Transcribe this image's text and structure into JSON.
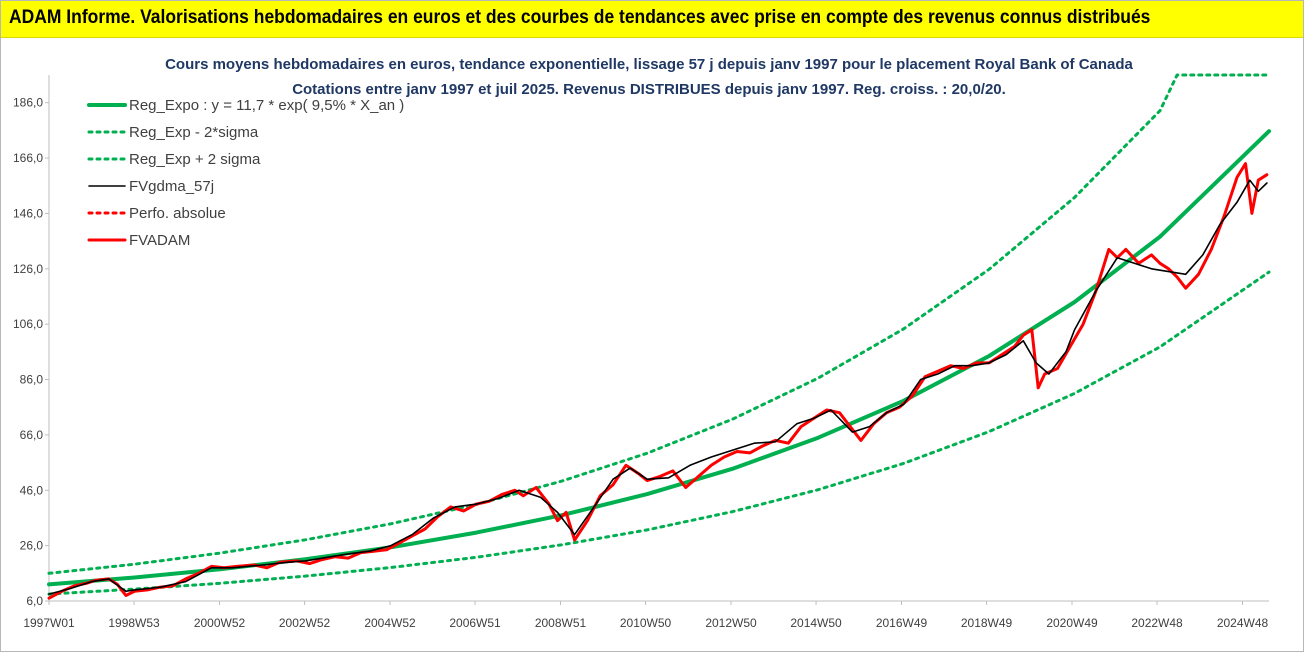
{
  "banner": {
    "title": "ADAM Informe. Valorisations hebdomadaires en euros et des courbes de tendances avec prise en compte des revenus connus distribués",
    "background": "#ffff00"
  },
  "chart_data": {
    "type": "line",
    "title": "Cours moyens hebdomadaires en euros, tendance exponentielle, lissage 57 j depuis janv 1997  pour le placement Royal Bank of Canada",
    "subtitle": "Cotations entre janv 1997 et juil 2025. Revenus DISTRIBUES depuis janv 1997. Reg. croiss. : 20,0/20.",
    "xlabel": "",
    "ylabel": "",
    "xlim": [
      1997.0,
      2025.55
    ],
    "ylim": [
      6,
      196
    ],
    "grid": false,
    "legend_position": "top-left",
    "x_ticks": [
      1997.0,
      1998.99,
      2000.99,
      2002.98,
      2004.98,
      2006.97,
      2008.97,
      2010.96,
      2012.96,
      2014.95,
      2016.95,
      2018.94,
      2020.94,
      2022.93,
      2024.93
    ],
    "x_tick_labels": [
      "1997W01",
      "1998W53",
      "2000W52",
      "2002W52",
      "2004W52",
      "2006W51",
      "2008W51",
      "2010W50",
      "2012W50",
      "2014W50",
      "2016W49",
      "2018W49",
      "2020W49",
      "2022W48",
      "2024W48"
    ],
    "y_ticks": [
      6,
      26,
      46,
      66,
      86,
      106,
      126,
      146,
      166,
      186
    ],
    "y_tick_labels": [
      "6,0",
      "26,0",
      "46,0",
      "66,0",
      "86,0",
      "106,0",
      "126,0",
      "146,0",
      "166,0",
      "186,0"
    ],
    "series": [
      {
        "name": "Reg_Expo : y = 11,7 * exp( 9,5% *  X_an )",
        "color": "#00b050",
        "style": "solid-thick",
        "x": [
          1997.0,
          1999.0,
          2001.0,
          2003.0,
          2005.0,
          2007.0,
          2009.0,
          2011.0,
          2013.0,
          2015.0,
          2017.0,
          2019.0,
          2021.0,
          2023.0,
          2025.55
        ],
        "values": [
          12.0,
          14.5,
          17.5,
          21.1,
          25.4,
          30.7,
          37.0,
          44.6,
          53.8,
          65.0,
          78.3,
          94.5,
          114.0,
          137.6,
          175.7
        ]
      },
      {
        "name": "Reg_Exp - 2*sigma",
        "color": "#00b050",
        "style": "dotted",
        "x": [
          1997.0,
          1999.0,
          2001.0,
          2003.0,
          2005.0,
          2007.0,
          2009.0,
          2011.0,
          2013.0,
          2015.0,
          2017.0,
          2019.0,
          2021.0,
          2023.0,
          2025.55
        ],
        "values": [
          8.5,
          10.3,
          12.4,
          15.0,
          18.1,
          21.8,
          26.3,
          31.7,
          38.3,
          46.2,
          55.7,
          67.2,
          81.0,
          97.8,
          124.8
        ]
      },
      {
        "name": "Reg_Exp + 2 sigma",
        "color": "#00b050",
        "style": "dotted",
        "x": [
          1997.0,
          1999.0,
          2001.0,
          2003.0,
          2005.0,
          2007.0,
          2009.0,
          2011.0,
          2013.0,
          2015.0,
          2017.0,
          2019.0,
          2021.0,
          2023.0,
          2023.4,
          2025.55
        ],
        "values": [
          16.0,
          19.3,
          23.3,
          28.1,
          33.9,
          40.9,
          49.3,
          59.4,
          71.7,
          86.5,
          104.3,
          125.8,
          151.8,
          183.1,
          196.0,
          196.0
        ]
      },
      {
        "name": "FVgdma_57j",
        "color": "#000000",
        "style": "solid",
        "x": [
          1997.0,
          1997.5,
          1998.0,
          1998.4,
          1998.8,
          1999.0,
          1999.6,
          2000.2,
          2000.8,
          2001.3,
          2002.0,
          2002.6,
          2003.0,
          2003.6,
          2004.0,
          2004.5,
          2005.0,
          2005.5,
          2006.0,
          2006.5,
          2007.0,
          2007.5,
          2008.0,
          2008.5,
          2008.9,
          2009.3,
          2009.8,
          2010.2,
          2010.6,
          2011.0,
          2011.5,
          2012.0,
          2012.5,
          2013.0,
          2013.5,
          2014.0,
          2014.5,
          2014.9,
          2015.3,
          2015.8,
          2016.2,
          2016.6,
          2017.0,
          2017.4,
          2017.8,
          2018.2,
          2018.6,
          2019.0,
          2019.4,
          2019.8,
          2020.1,
          2020.4,
          2020.8,
          2021.0,
          2021.5,
          2022.0,
          2022.4,
          2022.8,
          2023.2,
          2023.6,
          2024.0,
          2024.4,
          2024.8,
          2025.1,
          2025.3,
          2025.5
        ],
        "values": [
          8.5,
          10.5,
          13.0,
          14.0,
          9.5,
          10.0,
          11.0,
          13.0,
          18.0,
          18.0,
          19.0,
          20.0,
          20.5,
          22.0,
          23.0,
          24.0,
          26.0,
          30.0,
          36.0,
          40.0,
          41.0,
          43.0,
          46.0,
          43.5,
          38.0,
          30.0,
          41.0,
          50.0,
          54.0,
          50.0,
          50.5,
          55.0,
          58.0,
          60.5,
          63.0,
          63.5,
          70.0,
          72.0,
          75.0,
          67.0,
          69.0,
          74.0,
          77.0,
          86.0,
          88.0,
          91.0,
          91.0,
          92.0,
          95.0,
          100.0,
          92.0,
          88.0,
          96.0,
          104.0,
          118.0,
          130.0,
          128.0,
          126.0,
          125.0,
          124.0,
          131.0,
          142.0,
          150.0,
          158.0,
          154.0,
          157.0
        ]
      },
      {
        "name": "Perfo. absolue",
        "color": "#ff0000",
        "style": "dotted",
        "x": [],
        "values": []
      },
      {
        "name": "FVADAM",
        "color": "#ff0000",
        "style": "solid-thick",
        "x": [
          1997.0,
          1997.3,
          1997.6,
          1997.9,
          1998.1,
          1998.4,
          1998.6,
          1998.8,
          1999.0,
          1999.3,
          1999.6,
          1999.9,
          2000.2,
          2000.5,
          2000.8,
          2001.1,
          2001.4,
          2001.8,
          2002.1,
          2002.4,
          2002.8,
          2003.1,
          2003.4,
          2003.7,
          2004.0,
          2004.3,
          2004.6,
          2004.9,
          2005.2,
          2005.5,
          2005.8,
          2006.1,
          2006.4,
          2006.7,
          2007.0,
          2007.3,
          2007.6,
          2007.9,
          2008.1,
          2008.4,
          2008.7,
          2008.9,
          2009.1,
          2009.3,
          2009.6,
          2009.9,
          2010.2,
          2010.5,
          2010.8,
          2011.0,
          2011.3,
          2011.6,
          2011.9,
          2012.2,
          2012.5,
          2012.8,
          2013.1,
          2013.4,
          2013.7,
          2014.0,
          2014.3,
          2014.6,
          2014.9,
          2015.2,
          2015.5,
          2015.8,
          2016.0,
          2016.3,
          2016.6,
          2016.9,
          2017.2,
          2017.5,
          2017.8,
          2018.1,
          2018.4,
          2018.7,
          2019.0,
          2019.3,
          2019.6,
          2019.8,
          2020.0,
          2020.15,
          2020.3,
          2020.6,
          2020.9,
          2021.2,
          2021.5,
          2021.8,
          2022.0,
          2022.2,
          2022.5,
          2022.8,
          2023.0,
          2023.2,
          2023.4,
          2023.6,
          2023.9,
          2024.2,
          2024.5,
          2024.8,
          2025.0,
          2025.15,
          2025.3,
          2025.5
        ],
        "values": [
          7.0,
          9.5,
          11.5,
          12.5,
          13.5,
          14.0,
          12.0,
          8.0,
          9.5,
          10.0,
          11.0,
          11.5,
          14.0,
          16.0,
          18.5,
          18.0,
          18.5,
          19.0,
          18.0,
          20.0,
          20.5,
          19.5,
          21.0,
          22.0,
          21.5,
          23.5,
          24.0,
          24.5,
          27.0,
          29.5,
          32.0,
          36.5,
          40.0,
          38.5,
          41.0,
          42.0,
          44.5,
          46.0,
          44.0,
          47.0,
          41.0,
          35.0,
          38.0,
          28.0,
          35.0,
          44.0,
          48.0,
          55.0,
          52.0,
          49.5,
          51.0,
          53.0,
          47.0,
          51.0,
          55.0,
          58.0,
          60.0,
          59.5,
          62.0,
          64.0,
          63.0,
          69.0,
          72.0,
          75.0,
          74.0,
          68.0,
          64.0,
          70.0,
          74.0,
          76.0,
          80.0,
          87.0,
          89.0,
          91.0,
          90.0,
          92.0,
          92.0,
          95.0,
          98.0,
          102.0,
          104.0,
          83.0,
          88.0,
          90.0,
          98.0,
          106.0,
          118.0,
          133.0,
          130.0,
          133.0,
          128.0,
          131.0,
          128.0,
          126.0,
          123.0,
          119.0,
          124.0,
          133.0,
          145.0,
          159.0,
          164.0,
          146.0,
          158.0,
          160.0
        ]
      }
    ]
  }
}
